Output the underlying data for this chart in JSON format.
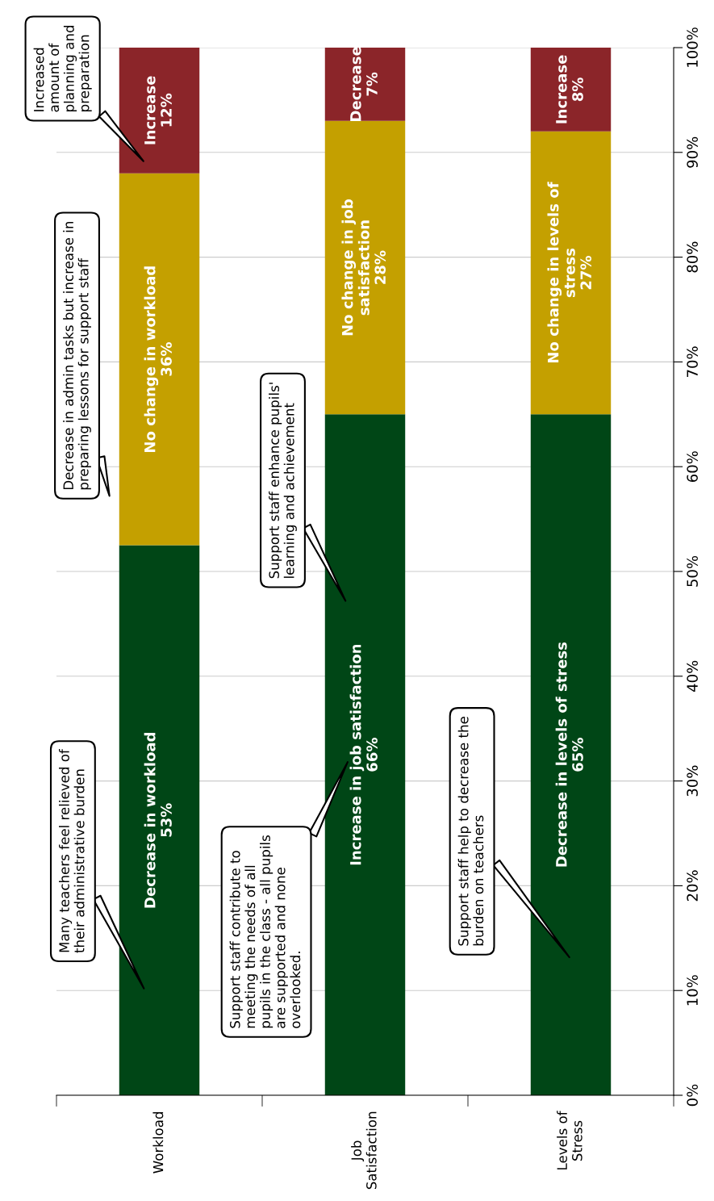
{
  "chart_data": {
    "type": "bar",
    "stacked": true,
    "categories": [
      "Workload",
      "Job\nSatisfaction",
      "Levels of\nStress"
    ],
    "series": [
      {
        "color": "#004616",
        "values": [
          52.5,
          65,
          65
        ],
        "value_labels": [
          "Decrease in workload\n53%",
          "Increase in job satisfaction\n66%",
          "Decrease in levels of stress\n65%"
        ]
      },
      {
        "color": "#c4a000",
        "values": [
          35.5,
          28,
          27
        ],
        "value_labels": [
          "No change in workload\n36%",
          "No change in job\nsatisfaction\n28%",
          "No change in levels of\nstress\n27%"
        ]
      },
      {
        "color": "#8b2529",
        "values": [
          12,
          7,
          8
        ],
        "value_labels": [
          "Increase\n12%",
          "Decrease\n7%",
          "Increase\n8%"
        ]
      }
    ],
    "ylim": [
      0,
      100
    ],
    "yticks": [
      {
        "value": 0,
        "label": "0%"
      },
      {
        "value": 10,
        "label": "10%"
      },
      {
        "value": 20,
        "label": "20%"
      },
      {
        "value": 30,
        "label": "30%"
      },
      {
        "value": 40,
        "label": "40%"
      },
      {
        "value": 50,
        "label": "50%"
      },
      {
        "value": 60,
        "label": "60%"
      },
      {
        "value": 70,
        "label": "70%"
      },
      {
        "value": 80,
        "label": "80%"
      },
      {
        "value": 90,
        "label": "90%"
      },
      {
        "value": 100,
        "label": "100%"
      }
    ],
    "grid": "y",
    "annotations": [
      "Many teachers feel relieved of\ntheir administrative burden",
      "Decrease in admin tasks but increase in\npreparing lessons for support staff",
      "Increased\namount of\nplanning and\npreparation",
      "Support staff enhance pupils'\nlearning and achievement",
      "Support staff contribute to\nmeeting the needs of all\npupils in the class - all pupils\nare supported and none\noverlooked.",
      "Support staff help to decrease the\nburden on teachers"
    ]
  }
}
